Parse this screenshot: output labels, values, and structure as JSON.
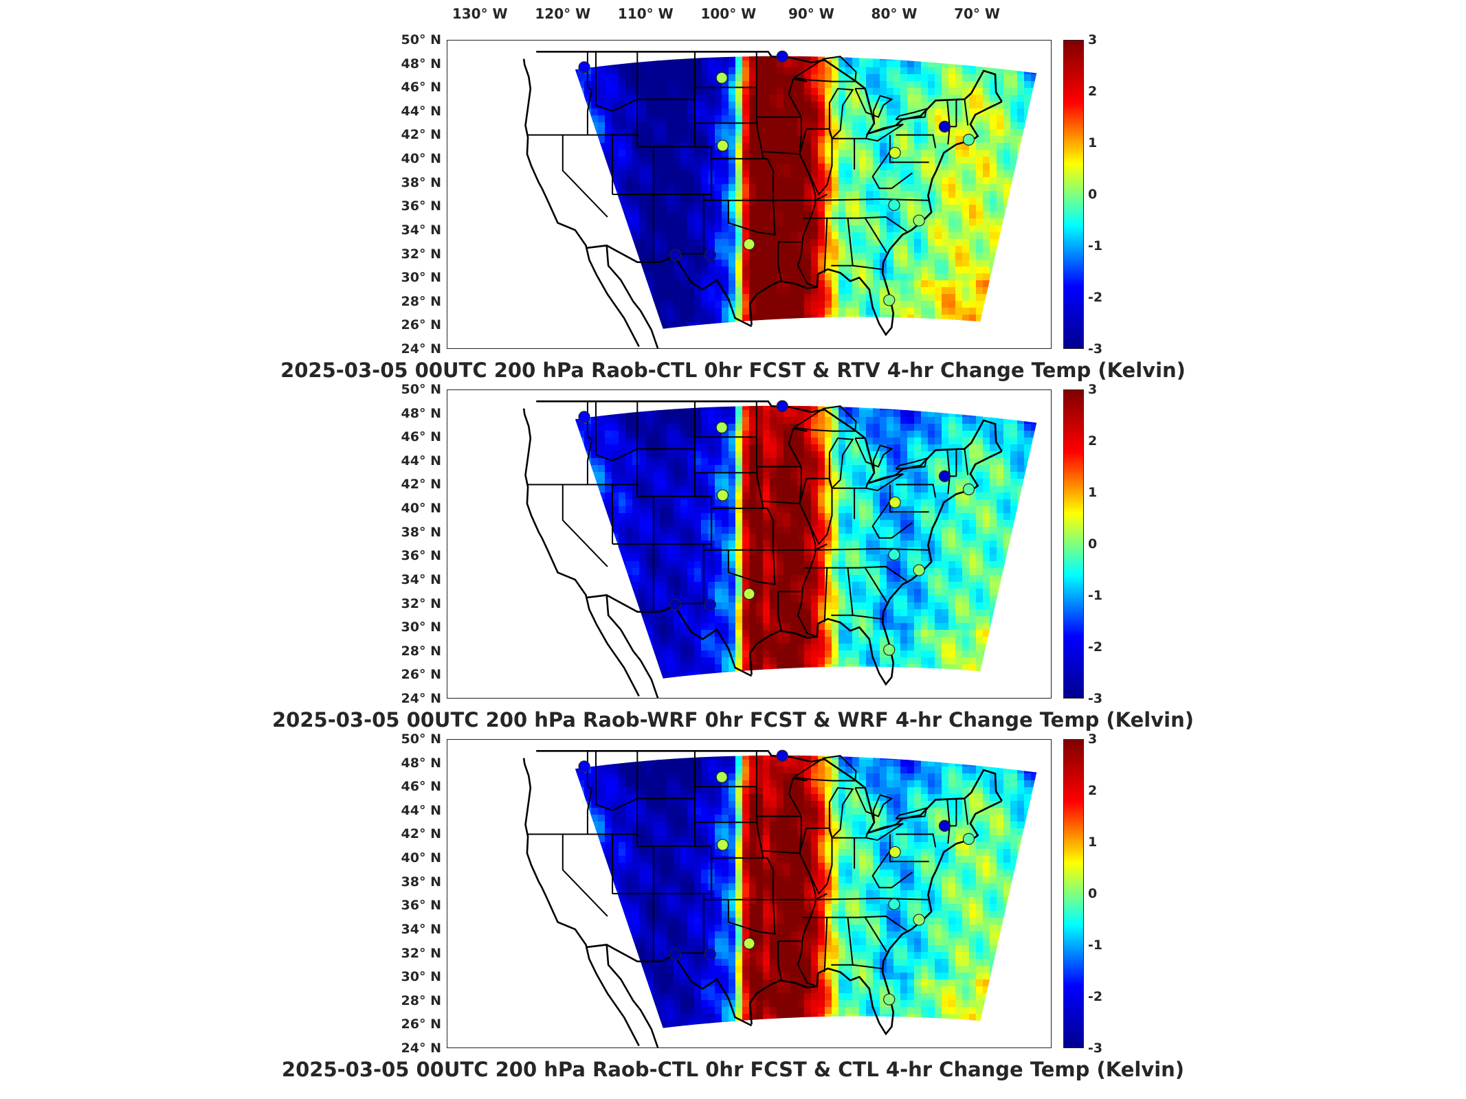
{
  "lon_labels": [
    "130° W",
    "120° W",
    "110° W",
    "100° W",
    "90° W",
    "80° W",
    "70° W"
  ],
  "lat_labels": [
    "50° N",
    "48° N",
    "46° N",
    "44° N",
    "42° N",
    "40° N",
    "38° N",
    "36° N",
    "34° N",
    "32° N",
    "30° N",
    "28° N",
    "26° N",
    "24° N"
  ],
  "colorbar": {
    "min": -3,
    "max": 3,
    "tick_labels": [
      "3",
      "2",
      "1",
      "0",
      "-1",
      "-2",
      "-3"
    ],
    "colormap": [
      "#00008f",
      "#0000ff",
      "#00ffff",
      "#ffff00",
      "#ff0000",
      "#800000"
    ]
  },
  "panels": [
    {
      "title": "2025-03-05 00UTC 200 hPa Raob-CTL 0hr FCST & RTV 4-hr Change Temp (Kelvin)"
    },
    {
      "title": "2025-03-05 00UTC 200 hPa Raob-WRF 0hr FCST & WRF 4-hr Change Temp (Kelvin)"
    },
    {
      "title": "2025-03-05 00UTC 200 hPa Raob-CTL 0hr FCST & CTL 4-hr Change Temp (Kelvin)"
    }
  ],
  "raob_stations": [
    {
      "lon": -117.4,
      "lat": 47.7,
      "v": -1.8
    },
    {
      "lon": -100.8,
      "lat": 46.8,
      "v": 0.2
    },
    {
      "lon": -93.5,
      "lat": 48.6,
      "v": -2.1
    },
    {
      "lon": -100.7,
      "lat": 41.1,
      "v": 0.3
    },
    {
      "lon": -73.9,
      "lat": 42.7,
      "v": -2.3
    },
    {
      "lon": -79.9,
      "lat": 40.5,
      "v": 0.4
    },
    {
      "lon": -80.0,
      "lat": 36.1,
      "v": -0.4
    },
    {
      "lon": -77.0,
      "lat": 34.8,
      "v": 0.1
    },
    {
      "lon": -97.5,
      "lat": 32.8,
      "v": 0.3
    },
    {
      "lon": -106.4,
      "lat": 31.9,
      "v": -2.6
    },
    {
      "lon": -102.2,
      "lat": 31.9,
      "v": -2.4
    },
    {
      "lon": -80.6,
      "lat": 28.1,
      "v": 0.0
    },
    {
      "lon": -71.0,
      "lat": 41.6,
      "v": -0.2
    }
  ]
}
